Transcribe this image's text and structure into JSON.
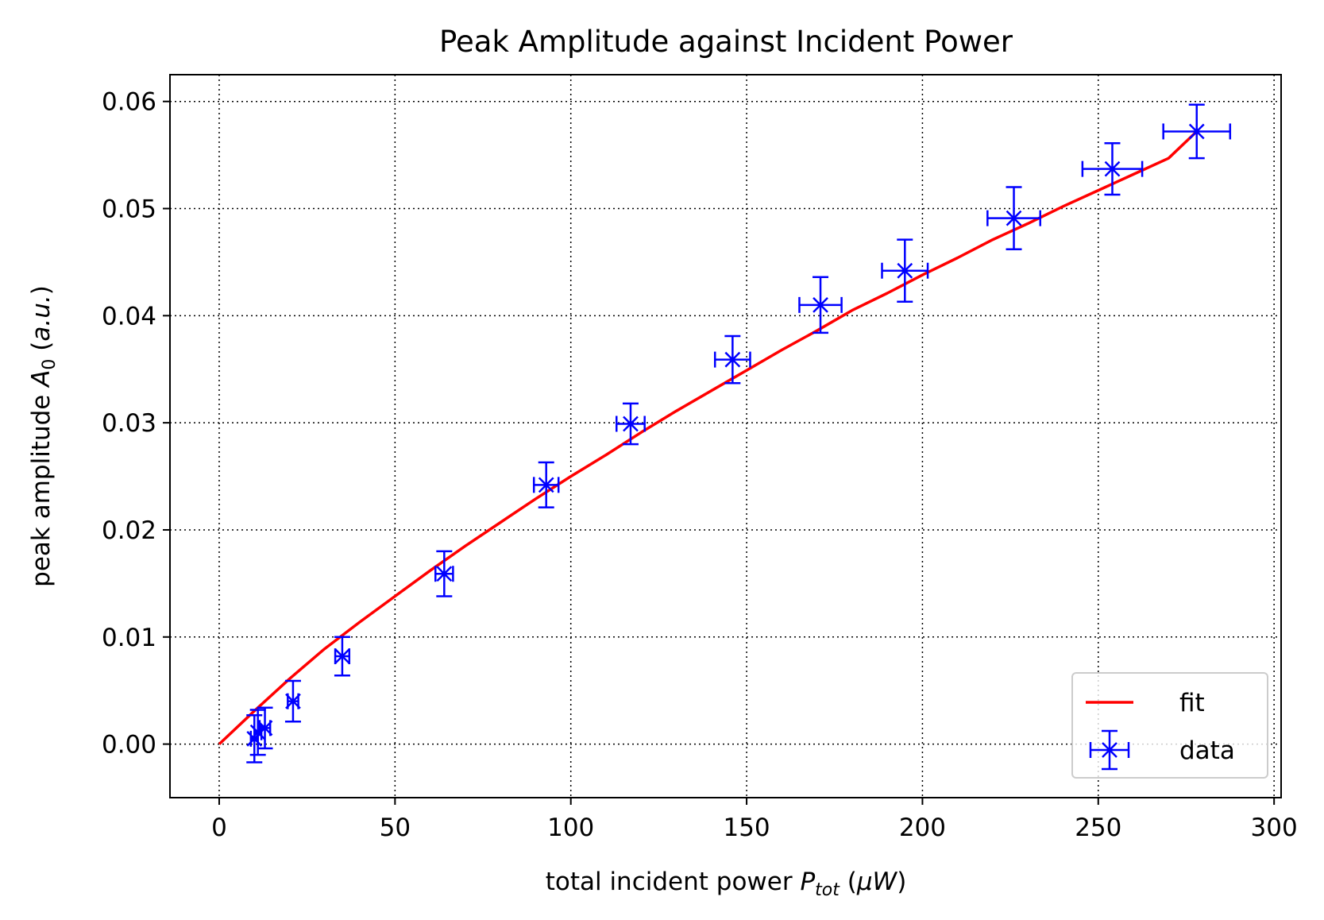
{
  "chart_data": {
    "type": "scatter",
    "title": "Peak Amplitude against Incident Power",
    "xlabel": {
      "prefix": "total incident power ",
      "var": "P",
      "sub": "tot",
      "unit_open": " (",
      "unit_var": "μW",
      "unit_close": ")"
    },
    "ylabel": {
      "prefix": "peak amplitude ",
      "var": "A",
      "sub": "0",
      "unit_open": " (",
      "unit_var": "a.u.",
      "unit_close": ")"
    },
    "xlim": [
      -14,
      302
    ],
    "ylim": [
      -0.005,
      0.0625
    ],
    "x_ticks": [
      0,
      50,
      100,
      150,
      200,
      250,
      300
    ],
    "x_tick_labels": [
      "0",
      "50",
      "100",
      "150",
      "200",
      "250",
      "300"
    ],
    "y_ticks": [
      0.0,
      0.01,
      0.02,
      0.03,
      0.04,
      0.05,
      0.06
    ],
    "y_tick_labels": [
      "0.00",
      "0.01",
      "0.02",
      "0.03",
      "0.04",
      "0.05",
      "0.06"
    ],
    "grid": true,
    "legend_position": "lower-right",
    "colors": {
      "data": "#0000ff",
      "fit": "#ff0000"
    },
    "series": [
      {
        "name": "fit",
        "kind": "line",
        "x": [
          0,
          10,
          20,
          30,
          40,
          50,
          60,
          70,
          80,
          90,
          100,
          110,
          120,
          130,
          140,
          150,
          160,
          170,
          180,
          190,
          200,
          210,
          220,
          230,
          240,
          250,
          260,
          270,
          278
        ],
        "y": [
          0.0,
          0.0031,
          0.0061,
          0.0089,
          0.0114,
          0.0138,
          0.0162,
          0.0185,
          0.0207,
          0.0229,
          0.025,
          0.027,
          0.0291,
          0.0311,
          0.033,
          0.0349,
          0.0368,
          0.0386,
          0.0405,
          0.0421,
          0.0438,
          0.0454,
          0.0471,
          0.0486,
          0.0502,
          0.0517,
          0.0532,
          0.0547,
          0.0572
        ]
      },
      {
        "name": "data",
        "kind": "errorbar",
        "points": [
          {
            "x": 10,
            "y": 0.0005,
            "xerr": 1.0,
            "yerr": 0.0022
          },
          {
            "x": 11,
            "y": 0.0011,
            "xerr": 1.0,
            "yerr": 0.0021
          },
          {
            "x": 13,
            "y": 0.0015,
            "xerr": 1.5,
            "yerr": 0.0019
          },
          {
            "x": 21,
            "y": 0.004,
            "xerr": 1.5,
            "yerr": 0.0019
          },
          {
            "x": 35,
            "y": 0.0082,
            "xerr": 2.0,
            "yerr": 0.0018
          },
          {
            "x": 64,
            "y": 0.0159,
            "xerr": 2.5,
            "yerr": 0.0021
          },
          {
            "x": 93,
            "y": 0.0242,
            "xerr": 3.5,
            "yerr": 0.0021
          },
          {
            "x": 117,
            "y": 0.0299,
            "xerr": 4.0,
            "yerr": 0.0019
          },
          {
            "x": 146,
            "y": 0.0359,
            "xerr": 5.0,
            "yerr": 0.0022
          },
          {
            "x": 171,
            "y": 0.041,
            "xerr": 6.0,
            "yerr": 0.0026
          },
          {
            "x": 195,
            "y": 0.0442,
            "xerr": 6.5,
            "yerr": 0.0029
          },
          {
            "x": 226,
            "y": 0.0491,
            "xerr": 7.5,
            "yerr": 0.0029
          },
          {
            "x": 254,
            "y": 0.0537,
            "xerr": 8.5,
            "yerr": 0.0024
          },
          {
            "x": 278,
            "y": 0.0572,
            "xerr": 9.5,
            "yerr": 0.0025
          }
        ]
      }
    ]
  }
}
